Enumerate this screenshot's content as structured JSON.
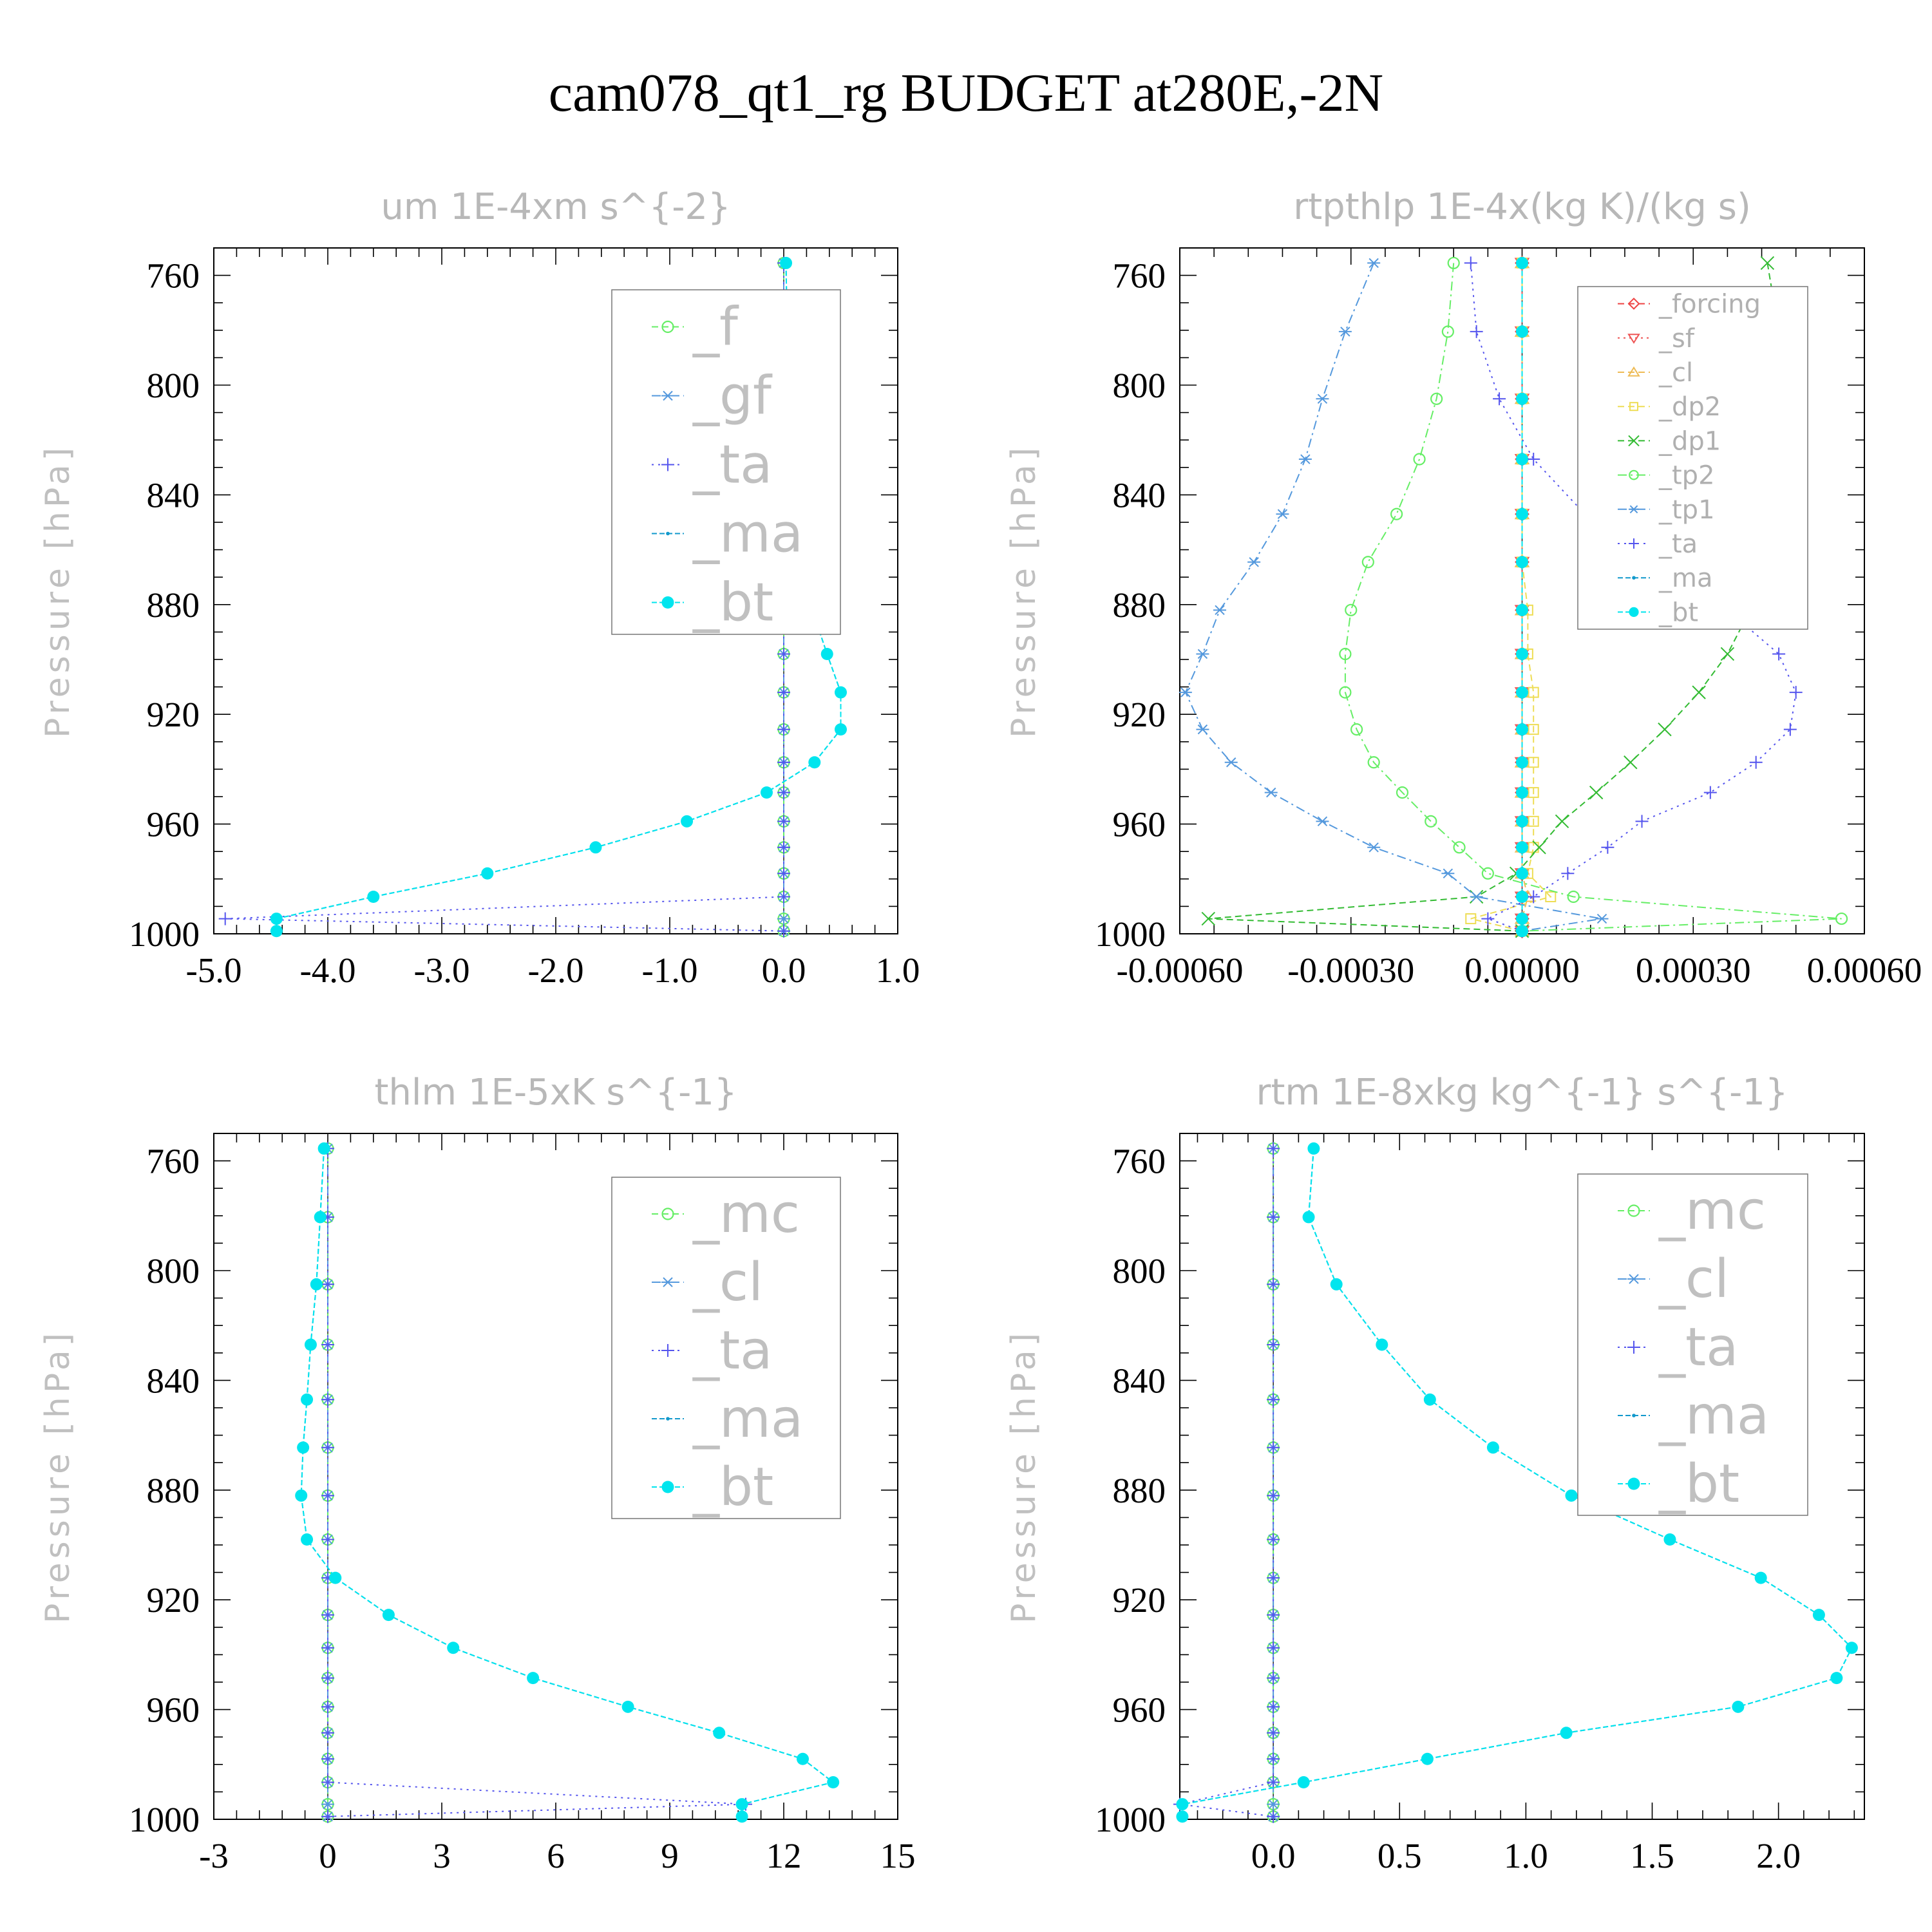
{
  "title": "cam078_qt1_rg  BUDGET at280E,-2N",
  "chart_data": [
    {
      "type": "line",
      "title": "um   1E-4xm s^{-2}",
      "ylabel": "Pressure [hPa]",
      "xlim": [
        -5.0,
        1.0
      ],
      "ylim": [
        1000,
        750
      ],
      "xticks": [
        -5.0,
        -4.0,
        -3.0,
        -2.0,
        -1.0,
        0.0,
        1.0
      ],
      "xtick_labels": [
        "-5.0",
        "-4.0",
        "-3.0",
        "-2.0",
        "-1.0",
        "0.0",
        "1.0"
      ],
      "yticks": [
        760,
        800,
        840,
        880,
        920,
        960,
        1000
      ],
      "legend_position": "top-right",
      "levels": [
        755.5,
        780.5,
        805,
        827,
        847,
        864.5,
        882,
        898,
        912,
        925.5,
        937.5,
        948.5,
        959,
        968.5,
        978,
        986.5,
        994.5,
        999
      ],
      "series": [
        {
          "name": "_f",
          "color": "#66ee66",
          "marker": "circle-open",
          "dash": "10,6",
          "values": [
            0,
            0,
            0,
            0,
            0,
            0,
            0,
            0,
            0,
            0,
            0,
            0,
            0,
            0,
            0,
            0,
            0,
            0
          ]
        },
        {
          "name": "_gf",
          "color": "#5599dd",
          "marker": "asterisk",
          "dash": "14,6,3,6",
          "values": [
            0,
            0,
            0,
            0,
            0,
            0,
            0,
            0,
            0,
            0,
            0,
            0,
            0,
            0,
            0,
            0,
            0,
            0
          ]
        },
        {
          "name": "_ta",
          "color": "#5555ee",
          "marker": "plus",
          "dash": "3,7",
          "values": [
            0,
            0,
            0,
            0,
            0,
            0,
            0,
            0,
            0,
            0,
            0,
            0,
            0,
            0,
            0,
            0,
            -4.9,
            0
          ]
        },
        {
          "name": "_ma",
          "color": "#1199cc",
          "marker": "dot",
          "dash": "8,4",
          "values": [
            0.02,
            0.03,
            0.05,
            0.06,
            0.08,
            0.13,
            0.25,
            0.38,
            0.5,
            0.5,
            0.27,
            -0.15,
            -0.85,
            -1.65,
            -2.6,
            -3.6,
            -4.45,
            -4.45
          ]
        },
        {
          "name": "_bt",
          "color": "#00e5ee",
          "marker": "filled-circle",
          "dash": "8,4",
          "values": [
            0.02,
            0.03,
            0.05,
            0.06,
            0.08,
            0.13,
            0.25,
            0.38,
            0.5,
            0.5,
            0.27,
            -0.15,
            -0.85,
            -1.65,
            -2.6,
            -3.6,
            -4.45,
            -4.45
          ]
        }
      ]
    },
    {
      "type": "line",
      "title": "rtpthlp   1E-4x(kg K)/(kg s)",
      "ylabel": "Pressure [hPa]",
      "xlim": [
        -0.0006,
        0.0006
      ],
      "ylim": [
        1000,
        750
      ],
      "xticks": [
        -0.0006,
        -0.0003,
        0.0,
        0.0003,
        0.0006
      ],
      "xtick_labels": [
        "-0.00060",
        "-0.00030",
        "0.00000",
        "0.00030",
        "0.00060"
      ],
      "yticks": [
        760,
        800,
        840,
        880,
        920,
        960,
        1000
      ],
      "legend_position": "top-right",
      "levels": [
        755.5,
        780.5,
        805,
        827,
        847,
        864.5,
        882,
        898,
        912,
        925.5,
        937.5,
        948.5,
        959,
        968.5,
        978,
        986.5,
        994.5,
        999
      ],
      "series": [
        {
          "name": "_forcing",
          "color": "#ee4444",
          "marker": "diamond-open",
          "dash": "10,6",
          "values": [
            0,
            0,
            0,
            0,
            0,
            0,
            0,
            0,
            0,
            0,
            0,
            0,
            0,
            0,
            0,
            0,
            0,
            0
          ]
        },
        {
          "name": "_sf",
          "color": "#ee5555",
          "marker": "triangle-down",
          "dash": "3,6",
          "values": [
            0,
            0,
            0,
            0,
            0,
            0,
            0,
            0,
            0,
            0,
            0,
            0,
            0,
            0,
            0,
            0,
            0,
            0
          ]
        },
        {
          "name": "_cl",
          "color": "#eebb55",
          "marker": "triangle-up",
          "dash": "10,6",
          "values": [
            0,
            0,
            0,
            0,
            0,
            0,
            0,
            0,
            0,
            0,
            0,
            0,
            0,
            0,
            0,
            1e-05,
            0,
            0
          ]
        },
        {
          "name": "_dp2",
          "color": "#eedd55",
          "marker": "square-open",
          "dash": "10,6",
          "values": [
            0,
            0,
            0,
            0,
            0,
            0,
            1e-05,
            1e-05,
            2e-05,
            2e-05,
            2e-05,
            2e-05,
            2e-05,
            2e-05,
            1e-05,
            5e-05,
            -9e-05,
            0
          ]
        },
        {
          "name": "_dp1",
          "color": "#33bb33",
          "marker": "cross",
          "dash": "10,6",
          "values": [
            0.00043,
            0.00045,
            0.00046,
            0.00043,
            0.00042,
            0.00042,
            0.0004,
            0.00036,
            0.00031,
            0.00025,
            0.00019,
            0.00013,
            7e-05,
            3e-05,
            -1e-05,
            -8e-05,
            -0.00055,
            0
          ]
        },
        {
          "name": "_tp2",
          "color": "#66ee66",
          "marker": "circle-open",
          "dash": "14,6,3,6",
          "values": [
            -0.00012,
            -0.00013,
            -0.00015,
            -0.00018,
            -0.00022,
            -0.00027,
            -0.0003,
            -0.00031,
            -0.00031,
            -0.00029,
            -0.00026,
            -0.00021,
            -0.00016,
            -0.00011,
            -6e-05,
            9e-05,
            0.00056,
            0
          ]
        },
        {
          "name": "_tp1",
          "color": "#5599dd",
          "marker": "asterisk",
          "dash": "14,6,3,6",
          "values": [
            -0.00026,
            -0.00031,
            -0.00035,
            -0.00038,
            -0.00042,
            -0.00047,
            -0.00053,
            -0.00056,
            -0.00059,
            -0.00056,
            -0.00051,
            -0.00044,
            -0.00035,
            -0.00026,
            -0.00013,
            -8e-05,
            0.00014,
            0
          ]
        },
        {
          "name": "_ta",
          "color": "#5555ee",
          "marker": "plus",
          "dash": "3,7",
          "values": [
            -9e-05,
            -8e-05,
            -4e-05,
            2e-05,
            0.00011,
            0.00021,
            0.00036,
            0.00045,
            0.00048,
            0.00047,
            0.00041,
            0.00033,
            0.00021,
            0.00015,
            8e-05,
            2e-05,
            -6e-05,
            0
          ]
        },
        {
          "name": "_ma",
          "color": "#1199cc",
          "marker": "dot",
          "dash": "8,4",
          "values": [
            0,
            0,
            0,
            0,
            0,
            0,
            0,
            0,
            0,
            0,
            0,
            0,
            0,
            0,
            0,
            0,
            0,
            0
          ]
        },
        {
          "name": "_bt",
          "color": "#00e5ee",
          "marker": "filled-circle",
          "dash": "8,4",
          "values": [
            0,
            0,
            0,
            0,
            0,
            0,
            0,
            0,
            0,
            0,
            0,
            0,
            0,
            0,
            0,
            0,
            0,
            0
          ]
        }
      ]
    },
    {
      "type": "line",
      "title": "thlm   1E-5xK s^{-1}",
      "ylabel": "Pressure [hPa]",
      "xlim": [
        -3,
        15
      ],
      "ylim": [
        1000,
        750
      ],
      "xticks": [
        -3,
        0,
        3,
        6,
        9,
        12,
        15
      ],
      "xtick_labels": [
        "-3",
        "0",
        "3",
        "6",
        "9",
        "12",
        "15"
      ],
      "yticks": [
        760,
        800,
        840,
        880,
        920,
        960,
        1000
      ],
      "legend_position": "top-right",
      "levels": [
        755.5,
        780.5,
        805,
        827,
        847,
        864.5,
        882,
        898,
        912,
        925.5,
        937.5,
        948.5,
        959,
        968.5,
        978,
        986.5,
        994.5,
        999
      ],
      "series": [
        {
          "name": "_mc",
          "color": "#66ee66",
          "marker": "circle-open",
          "dash": "10,6",
          "values": [
            0,
            0,
            0,
            0,
            0,
            0,
            0,
            0,
            0,
            0,
            0,
            0,
            0,
            0,
            0,
            0,
            0,
            0
          ]
        },
        {
          "name": "_cl",
          "color": "#5599dd",
          "marker": "asterisk",
          "dash": "14,6,3,6",
          "values": [
            0,
            0,
            0,
            0,
            0,
            0,
            0,
            0,
            0,
            0,
            0,
            0,
            0,
            0,
            0,
            0,
            0,
            0
          ]
        },
        {
          "name": "_ta",
          "color": "#5555ee",
          "marker": "plus",
          "dash": "3,7",
          "values": [
            0,
            0,
            0,
            0,
            0,
            0,
            0,
            0,
            0,
            0,
            0,
            0,
            0,
            0,
            0,
            0,
            11.0,
            0
          ]
        },
        {
          "name": "_ma",
          "color": "#1199cc",
          "marker": "dot",
          "dash": "8,4",
          "values": [
            -0.1,
            -0.2,
            -0.3,
            -0.45,
            -0.55,
            -0.65,
            -0.7,
            -0.55,
            0.2,
            1.6,
            3.3,
            5.4,
            7.9,
            10.3,
            12.5,
            13.3,
            10.9,
            10.9
          ]
        },
        {
          "name": "_bt",
          "color": "#00e5ee",
          "marker": "filled-circle",
          "dash": "8,4",
          "values": [
            -0.1,
            -0.2,
            -0.3,
            -0.45,
            -0.55,
            -0.65,
            -0.7,
            -0.55,
            0.2,
            1.6,
            3.3,
            5.4,
            7.9,
            10.3,
            12.5,
            13.3,
            10.9,
            10.9
          ]
        }
      ]
    },
    {
      "type": "line",
      "title": "rtm   1E-8xkg kg^{-1} s^{-1}",
      "ylabel": "Pressure [hPa]",
      "xlim": [
        -0.37,
        2.34
      ],
      "ylim": [
        1000,
        750
      ],
      "xticks": [
        0.0,
        0.5,
        1.0,
        1.5,
        2.0
      ],
      "xtick_labels": [
        "0.0",
        "0.5",
        "1.0",
        "1.5",
        "2.0"
      ],
      "yticks": [
        760,
        800,
        840,
        880,
        920,
        960,
        1000
      ],
      "legend_position": "top-right",
      "levels": [
        755.5,
        780.5,
        805,
        827,
        847,
        864.5,
        882,
        898,
        912,
        925.5,
        937.5,
        948.5,
        959,
        968.5,
        978,
        986.5,
        994.5,
        999
      ],
      "series": [
        {
          "name": "_mc",
          "color": "#66ee66",
          "marker": "circle-open",
          "dash": "10,6",
          "values": [
            0,
            0,
            0,
            0,
            0,
            0,
            0,
            0,
            0,
            0,
            0,
            0,
            0,
            0,
            0,
            0,
            0,
            0
          ]
        },
        {
          "name": "_cl",
          "color": "#5599dd",
          "marker": "asterisk",
          "dash": "14,6,3,6",
          "values": [
            0,
            0,
            0,
            0,
            0,
            0,
            0,
            0,
            0,
            0,
            0,
            0,
            0,
            0,
            0,
            0,
            0,
            0
          ]
        },
        {
          "name": "_ta",
          "color": "#5555ee",
          "marker": "plus",
          "dash": "3,7",
          "values": [
            0,
            0,
            0,
            0,
            0,
            0,
            0,
            0,
            0,
            0,
            0,
            0,
            0,
            0,
            0,
            0,
            -0.37,
            0
          ]
        },
        {
          "name": "_ma",
          "color": "#1199cc",
          "marker": "dot",
          "dash": "8,4",
          "values": [
            0.16,
            0.14,
            0.25,
            0.43,
            0.62,
            0.87,
            1.18,
            1.57,
            1.93,
            2.16,
            2.29,
            2.23,
            1.84,
            1.16,
            0.61,
            0.12,
            -0.36,
            -0.36
          ]
        },
        {
          "name": "_bt",
          "color": "#00e5ee",
          "marker": "filled-circle",
          "dash": "8,4",
          "values": [
            0.16,
            0.14,
            0.25,
            0.43,
            0.62,
            0.87,
            1.18,
            1.57,
            1.93,
            2.16,
            2.29,
            2.23,
            1.84,
            1.16,
            0.61,
            0.12,
            -0.36,
            -0.36
          ]
        }
      ]
    }
  ]
}
